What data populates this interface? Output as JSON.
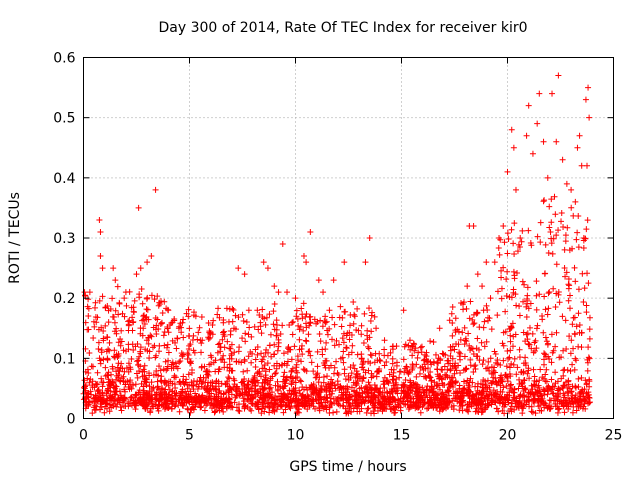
{
  "chart_data": {
    "type": "scatter",
    "title": "Day 300 of 2014, Rate Of TEC Index for receiver kir0",
    "xlabel": "GPS time / hours",
    "ylabel": "ROTI / TECUs",
    "xlim": [
      0,
      25
    ],
    "ylim": [
      0,
      0.6
    ],
    "xticks": [
      0,
      5,
      10,
      15,
      20,
      25
    ],
    "yticks": [
      0,
      0.1,
      0.2,
      0.3,
      0.4,
      0.5,
      0.6
    ],
    "grid": true,
    "marker": "+",
    "color": "#ff0000",
    "series": [
      {
        "name": "ROTI",
        "points": [
          [
            0.05,
            0.21
          ],
          [
            0.3,
            0.21
          ],
          [
            0.6,
            0.16
          ],
          [
            0.75,
            0.33
          ],
          [
            0.8,
            0.31
          ],
          [
            0.8,
            0.27
          ],
          [
            0.9,
            0.25
          ],
          [
            1.4,
            0.25
          ],
          [
            1.5,
            0.23
          ],
          [
            2.0,
            0.21
          ],
          [
            2.5,
            0.24
          ],
          [
            2.6,
            0.35
          ],
          [
            2.7,
            0.25
          ],
          [
            3.0,
            0.26
          ],
          [
            3.2,
            0.27
          ],
          [
            3.4,
            0.38
          ],
          [
            3.6,
            0.19
          ],
          [
            4.0,
            0.18
          ],
          [
            4.5,
            0.15
          ],
          [
            5.3,
            0.17
          ],
          [
            5.6,
            0.13
          ],
          [
            6.1,
            0.14
          ],
          [
            6.6,
            0.14
          ],
          [
            7.1,
            0.15
          ],
          [
            7.3,
            0.25
          ],
          [
            7.6,
            0.24
          ],
          [
            7.8,
            0.18
          ],
          [
            8.2,
            0.18
          ],
          [
            8.5,
            0.26
          ],
          [
            8.7,
            0.25
          ],
          [
            9.0,
            0.22
          ],
          [
            9.2,
            0.21
          ],
          [
            9.4,
            0.29
          ],
          [
            9.6,
            0.21
          ],
          [
            10.0,
            0.2
          ],
          [
            10.4,
            0.27
          ],
          [
            10.5,
            0.26
          ],
          [
            10.7,
            0.31
          ],
          [
            11.1,
            0.23
          ],
          [
            11.3,
            0.21
          ],
          [
            11.6,
            0.18
          ],
          [
            11.8,
            0.23
          ],
          [
            12.3,
            0.26
          ],
          [
            12.8,
            0.17
          ],
          [
            13.1,
            0.14
          ],
          [
            13.3,
            0.26
          ],
          [
            13.5,
            0.3
          ],
          [
            13.8,
            0.15
          ],
          [
            14.2,
            0.13
          ],
          [
            14.6,
            0.12
          ],
          [
            15.1,
            0.18
          ],
          [
            15.4,
            0.13
          ],
          [
            15.7,
            0.09
          ],
          [
            16.1,
            0.09
          ],
          [
            16.4,
            0.09
          ],
          [
            16.8,
            0.15
          ],
          [
            17.3,
            0.08
          ],
          [
            17.6,
            0.08
          ],
          [
            17.9,
            0.19
          ],
          [
            18.1,
            0.22
          ],
          [
            18.2,
            0.32
          ],
          [
            18.4,
            0.32
          ],
          [
            18.6,
            0.24
          ],
          [
            18.8,
            0.22
          ],
          [
            19.0,
            0.26
          ],
          [
            19.2,
            0.2
          ],
          [
            19.4,
            0.26
          ],
          [
            19.6,
            0.3
          ],
          [
            19.8,
            0.32
          ],
          [
            20.0,
            0.41
          ],
          [
            20.2,
            0.48
          ],
          [
            20.3,
            0.45
          ],
          [
            20.4,
            0.38
          ],
          [
            20.6,
            0.3
          ],
          [
            20.9,
            0.47
          ],
          [
            21.0,
            0.52
          ],
          [
            21.2,
            0.44
          ],
          [
            21.4,
            0.49
          ],
          [
            21.5,
            0.54
          ],
          [
            21.7,
            0.46
          ],
          [
            21.9,
            0.4
          ],
          [
            22.1,
            0.54
          ],
          [
            22.3,
            0.46
          ],
          [
            22.4,
            0.57
          ],
          [
            22.6,
            0.43
          ],
          [
            22.8,
            0.39
          ],
          [
            23.0,
            0.38
          ],
          [
            23.2,
            0.36
          ],
          [
            23.3,
            0.45
          ],
          [
            23.4,
            0.47
          ],
          [
            23.5,
            0.42
          ],
          [
            23.6,
            0.3
          ],
          [
            23.7,
            0.53
          ],
          [
            23.8,
            0.55
          ],
          [
            23.85,
            0.5
          ],
          [
            23.75,
            0.42
          ]
        ]
      }
    ]
  }
}
